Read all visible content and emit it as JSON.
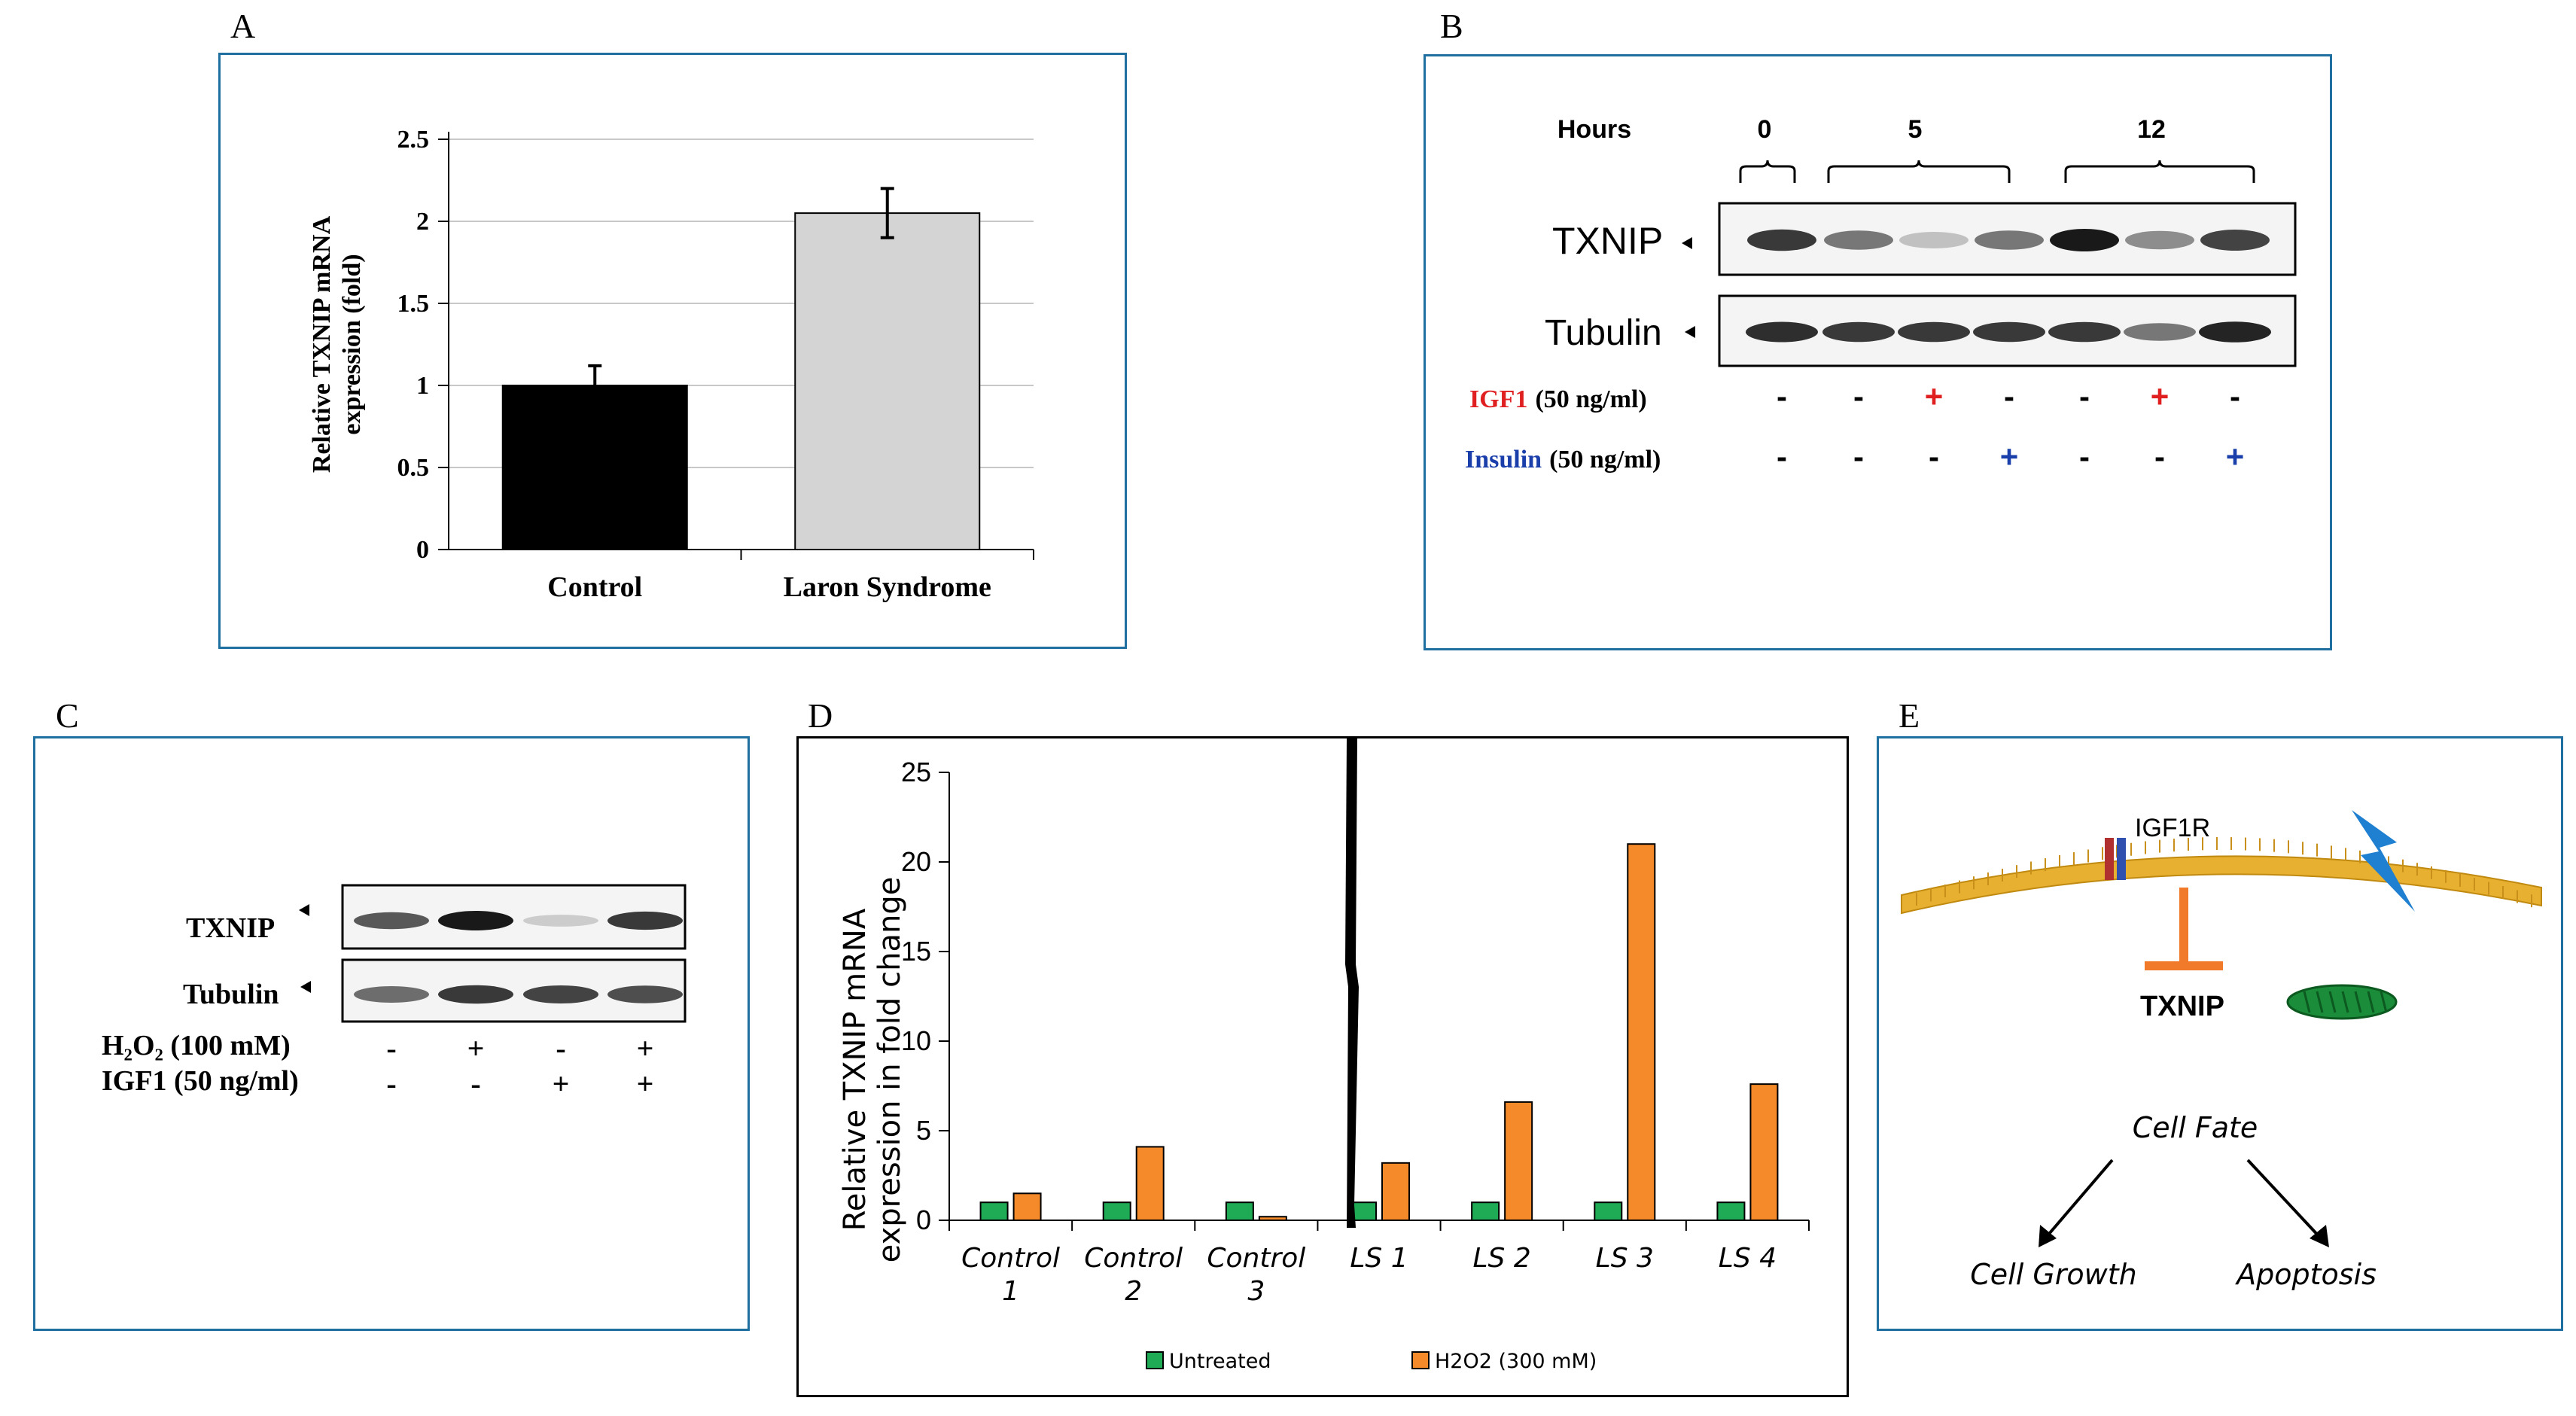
{
  "panels": {
    "a": {
      "label": "A"
    },
    "b": {
      "label": "B"
    },
    "c": {
      "label": "C"
    },
    "d": {
      "label": "D"
    },
    "e": {
      "label": "E"
    }
  },
  "chart_data": [
    {
      "type": "bar",
      "panel": "A",
      "title": "",
      "categories": [
        "Control",
        "Laron Syndrome"
      ],
      "values": [
        1.0,
        2.05
      ],
      "errors": [
        0.12,
        0.15
      ],
      "ylabel": "Relative TXNIP mRNA expression (fold)",
      "ylabel_lines": [
        "Relative TXNIP mRNA",
        "expression (fold)"
      ],
      "xlabel": "",
      "ylim": [
        0,
        2.5
      ],
      "yticks": [
        "0",
        "0.5",
        "1",
        "1.5",
        "2",
        "2.5"
      ],
      "ytick_values": [
        0,
        0.5,
        1,
        1.5,
        2,
        2.5
      ],
      "colors": [
        "#000000",
        "#d4d4d4"
      ],
      "grid": true
    },
    {
      "type": "bar",
      "panel": "D",
      "categories": [
        "Control 1",
        "Control 2",
        "Control 3",
        "LS 1",
        "LS 2",
        "LS 3",
        "LS 4"
      ],
      "category_lines": [
        [
          "Control",
          "1"
        ],
        [
          "Control",
          "2"
        ],
        [
          "Control",
          "3"
        ],
        [
          "LS 1"
        ],
        [
          "LS 2"
        ],
        [
          "LS 3"
        ],
        [
          "LS 4"
        ]
      ],
      "series": [
        {
          "name": "Untreated",
          "color": "#1faa55",
          "values": [
            1,
            1,
            1,
            1,
            1,
            1,
            1
          ]
        },
        {
          "name": "H2O2 (300 mM)",
          "color": "#f58a2a",
          "values": [
            1.5,
            4.1,
            0.2,
            3.2,
            6.6,
            21.0,
            7.6
          ]
        }
      ],
      "ylabel": "Relative TXNIP mRNA expression in fold change",
      "ylabel_lines": [
        "Relative TXNIP mRNA",
        "expression in fold change"
      ],
      "ylim": [
        0,
        25
      ],
      "yticks": [
        "0",
        "5",
        "10",
        "15",
        "20",
        "25"
      ],
      "ytick_values": [
        0,
        5,
        10,
        15,
        20,
        25
      ],
      "legend_position": "bottom"
    }
  ],
  "blot_b": {
    "hours_label": "Hours",
    "time_labels": [
      "0",
      "5",
      "12"
    ],
    "txnip_label": "TXNIP",
    "tubulin_label": "Tubulin",
    "txnip_intensity": [
      0.85,
      0.55,
      0.2,
      0.55,
      1.0,
      0.45,
      0.8
    ],
    "tubulin_intensity": [
      0.9,
      0.85,
      0.85,
      0.85,
      0.85,
      0.55,
      0.95
    ],
    "igf1_label": "IGF1",
    "igf1_conc": "(50 ng/ml)",
    "igf1_color": "#e02020",
    "insulin_label": "Insulin",
    "insulin_conc": "(50 ng/ml)",
    "insulin_color": "#1a3faa",
    "igf1_signs": [
      "-",
      "-",
      "+",
      "-",
      "-",
      "+",
      "-"
    ],
    "insulin_signs": [
      "-",
      "-",
      "-",
      "+",
      "-",
      "-",
      "+"
    ]
  },
  "blot_c": {
    "txnip_label": "TXNIP",
    "tubulin_label": "Tubulin",
    "txnip_intensity": [
      0.7,
      1.0,
      0.15,
      0.85
    ],
    "tubulin_intensity": [
      0.6,
      0.85,
      0.8,
      0.75
    ],
    "h2o2_label": "H₂O₂ (100 mM)",
    "igf1_label": "IGF1 (50 ng/ml)",
    "h2o2_signs": [
      "-",
      "+",
      "-",
      "+"
    ],
    "igf1_signs": [
      "-",
      "-",
      "+",
      "+"
    ]
  },
  "diagram_e": {
    "receptor_label": "IGF1R",
    "target_label": "TXNIP",
    "fate_label": "Cell Fate",
    "outcome_left": "Cell  Growth",
    "outcome_right": "Apoptosis",
    "membrane_color": "#e8b030",
    "inhibit_color": "#f07a2a",
    "bolt_color": "#1f7fd0",
    "mito_color": "#1a8c3a"
  },
  "colors": {
    "panel_border": "#1f6fa0"
  }
}
